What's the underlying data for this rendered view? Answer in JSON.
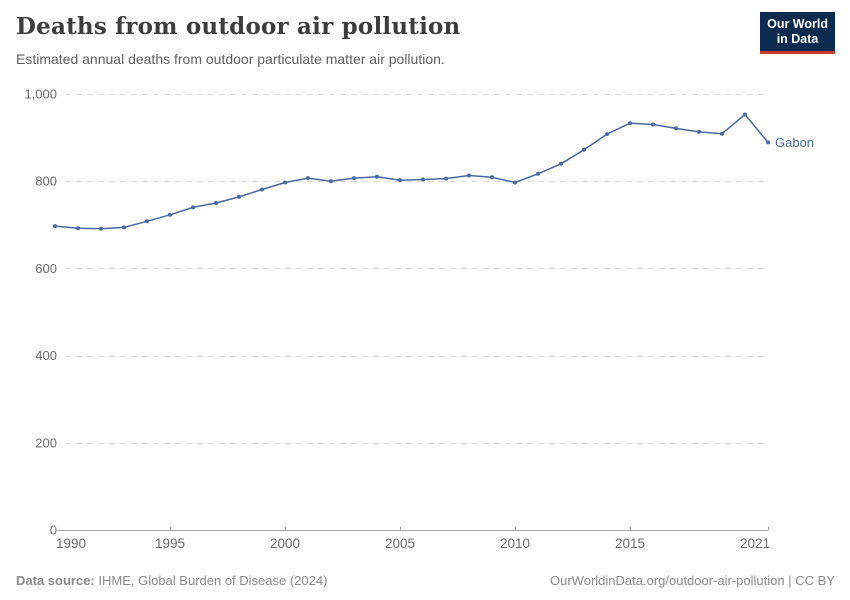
{
  "chart_data": {
    "type": "line",
    "title": "Deaths from outdoor air pollution",
    "subtitle": "Estimated annual deaths from outdoor particulate matter air pollution.",
    "entity": "Gabon",
    "x": [
      1990,
      1991,
      1992,
      1993,
      1994,
      1995,
      1996,
      1997,
      1998,
      1999,
      2000,
      2001,
      2002,
      2003,
      2004,
      2005,
      2006,
      2007,
      2008,
      2009,
      2010,
      2011,
      2012,
      2013,
      2014,
      2015,
      2016,
      2017,
      2018,
      2019,
      2020,
      2021
    ],
    "series": [
      {
        "name": "Gabon",
        "color": "#4a69a3",
        "values": [
          697,
          692,
          691,
          694,
          708,
          723,
          740,
          750,
          764,
          781,
          797,
          807,
          800,
          807,
          810,
          802,
          804,
          806,
          813,
          809,
          797,
          817,
          840,
          872,
          908,
          933,
          930,
          921,
          913,
          909,
          953,
          889
        ]
      }
    ],
    "x_ticks": [
      1990,
      1995,
      2000,
      2005,
      2010,
      2015,
      2021
    ],
    "y_ticks": [
      0,
      200,
      400,
      600,
      800,
      1000
    ],
    "y_tick_labels": [
      "0",
      "200",
      "400",
      "600",
      "800",
      "1,000"
    ],
    "xlim": [
      1990,
      2021
    ],
    "ylim": [
      0,
      1000
    ],
    "grid": "horizontal-dashed",
    "gridline_color": "#dcdcdc",
    "axis_color": "#a5a5a5",
    "legend_position": "end-of-line-label"
  },
  "logo": {
    "line1": "Our World",
    "line2": "in Data",
    "bg_color": "#0d2b4e",
    "accent_color": "#cc3a30",
    "text_color": "#ffffff"
  },
  "footer": {
    "source_label": "Data source:",
    "source_text": "IHME, Global Burden of Disease (2024)",
    "credit_link": "OurWorldinData.org/outdoor-air-pollution",
    "separator": "|",
    "license": "CC BY"
  }
}
